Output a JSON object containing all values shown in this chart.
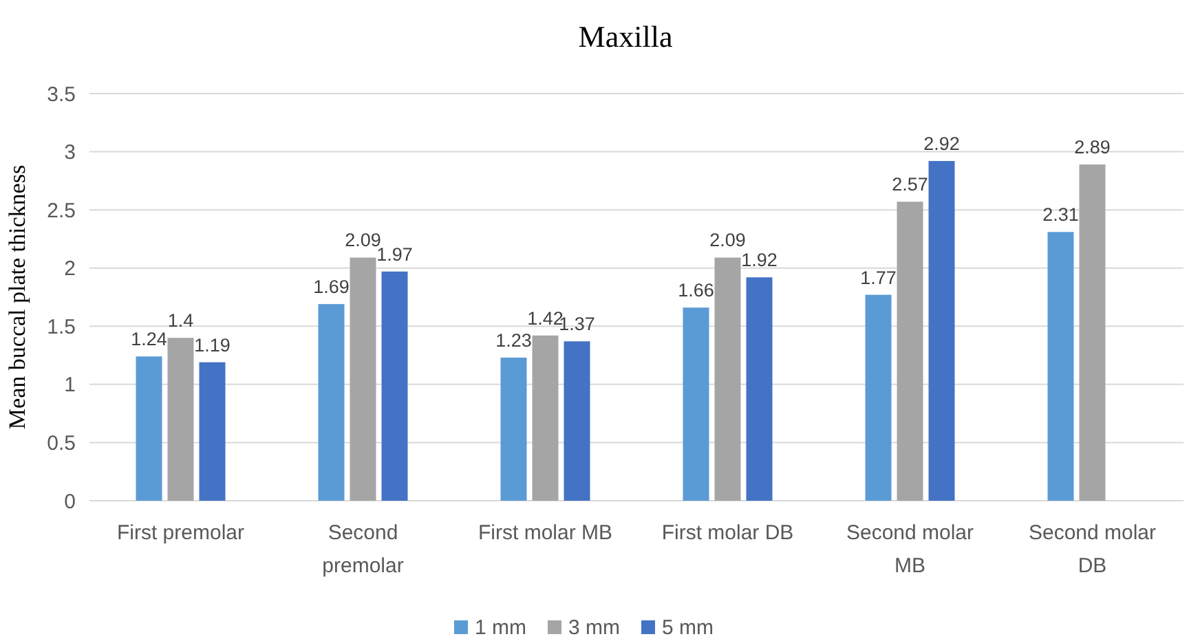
{
  "chart_data": {
    "type": "bar",
    "title": "Maxilla",
    "ylabel": "Mean buccal plate thickness",
    "categories": [
      "First premolar",
      "Second premolar",
      "First molar MB",
      "First molar DB",
      "Second molar MB",
      "Second molar DB"
    ],
    "series": [
      {
        "name": "1 mm",
        "color": "#5b9bd5",
        "values": [
          1.24,
          1.69,
          1.23,
          1.66,
          1.77,
          2.31
        ]
      },
      {
        "name": "3 mm",
        "color": "#a5a5a5",
        "values": [
          1.4,
          2.09,
          1.42,
          2.09,
          2.57,
          2.89
        ]
      },
      {
        "name": "5 mm",
        "color": "#4472c4",
        "values": [
          1.19,
          1.97,
          1.37,
          1.92,
          2.92,
          null
        ]
      }
    ],
    "ylim": [
      0,
      3.5
    ],
    "yticks": [
      0,
      0.5,
      1,
      1.5,
      2,
      2.5,
      3,
      3.5
    ],
    "grid": "y",
    "data_labels": true,
    "legend": "bottom"
  }
}
